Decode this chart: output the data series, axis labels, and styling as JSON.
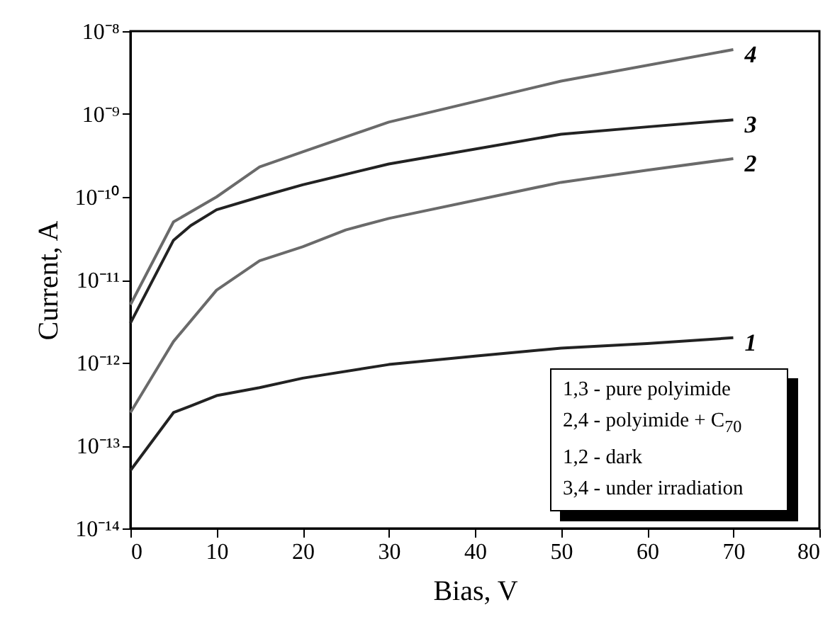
{
  "chart_data": {
    "type": "line",
    "xlabel": "Bias, V",
    "ylabel": "Current, A",
    "log": "y",
    "grid": false,
    "legend": false,
    "marker": "none",
    "line_style": "solid",
    "xlim": [
      0,
      80
    ],
    "xticks": [
      0,
      10,
      20,
      30,
      40,
      50,
      60,
      70,
      80
    ],
    "ylim": [
      1e-14,
      1e-08
    ],
    "yticks": [
      {
        "value": 1e-14,
        "label": "10⁻¹⁴"
      },
      {
        "value": 1e-13,
        "label": "10⁻¹³"
      },
      {
        "value": 1e-12,
        "label": "10⁻¹²"
      },
      {
        "value": 1e-11,
        "label": "10⁻¹¹"
      },
      {
        "value": 1e-10,
        "label": "10⁻¹⁰"
      },
      {
        "value": 1e-09,
        "label": "10⁻⁹"
      },
      {
        "value": 1e-08,
        "label": "10⁻⁸"
      }
    ],
    "series": [
      {
        "name": "1",
        "color": "#222222",
        "x": [
          0,
          5,
          7,
          10,
          15,
          20,
          30,
          40,
          50,
          60,
          70
        ],
        "values": [
          5e-14,
          2.5e-13,
          3e-13,
          4e-13,
          5e-13,
          6.5e-13,
          9.5e-13,
          1.2e-12,
          1.5e-12,
          1.7e-12,
          2e-12
        ]
      },
      {
        "name": "2",
        "color": "#6a6a6a",
        "x": [
          0,
          5,
          10,
          15,
          20,
          25,
          30,
          50,
          60,
          70
        ],
        "values": [
          2.5e-13,
          1.8e-12,
          7.5e-12,
          1.7e-11,
          2.5e-11,
          4e-11,
          5.5e-11,
          1.5e-10,
          2.1e-10,
          2.9e-10
        ]
      },
      {
        "name": "3",
        "color": "#222222",
        "x": [
          0,
          5,
          7,
          10,
          15,
          20,
          30,
          50,
          60,
          70
        ],
        "values": [
          3e-12,
          3e-11,
          4.5e-11,
          7e-11,
          1e-10,
          1.4e-10,
          2.5e-10,
          5.7e-10,
          7e-10,
          8.5e-10
        ]
      },
      {
        "name": "4",
        "color": "#6a6a6a",
        "x": [
          0,
          5,
          10,
          15,
          20,
          30,
          50,
          70
        ],
        "values": [
          5e-12,
          5e-11,
          1e-10,
          2.3e-10,
          3.5e-10,
          8e-10,
          2.5e-09,
          6e-09
        ]
      }
    ],
    "annotations": [
      "1,3 - pure polyimide",
      "2,4 - polyimide + C$_{70}$",
      "1,2 - dark",
      "3,4 - under irradiation"
    ]
  }
}
